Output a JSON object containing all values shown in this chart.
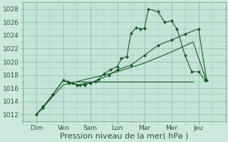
{
  "xlabel": "Pression niveau de la mer( hPa )",
  "background_color": "#cce8dc",
  "plot_bg_color": "#c4e4d8",
  "grid_color": "#9abfad",
  "line_color": "#1a5c28",
  "ylim": [
    1011.5,
    1029
  ],
  "xlim": [
    -0.5,
    7.0
  ],
  "yticks": [
    1012,
    1014,
    1016,
    1018,
    1020,
    1022,
    1024,
    1026,
    1028
  ],
  "days": [
    "Dim",
    "Ven",
    "Sam",
    "Lun",
    "Mar",
    "Mer",
    "Jeu"
  ],
  "day_x": [
    0.0,
    1.0,
    2.0,
    3.0,
    4.0,
    5.0,
    6.0
  ],
  "line1_x": [
    0.0,
    0.25,
    0.6,
    1.0,
    1.15,
    1.35,
    1.6,
    1.8,
    2.0,
    2.2,
    2.5,
    2.75,
    3.0,
    3.15,
    3.35,
    3.5,
    3.7,
    3.85,
    4.0,
    4.15,
    4.5,
    4.75,
    5.0,
    5.2,
    5.5,
    5.75,
    6.0,
    6.25
  ],
  "line1_y": [
    1012.0,
    1013.2,
    1015.0,
    1017.2,
    1017.0,
    1016.8,
    1016.5,
    1016.7,
    1016.8,
    1017.0,
    1018.2,
    1018.8,
    1019.3,
    1020.5,
    1020.8,
    1024.3,
    1025.2,
    1025.0,
    1025.1,
    1028.0,
    1027.6,
    1026.0,
    1026.2,
    1025.0,
    1021.0,
    1018.5,
    1018.5,
    1017.2
  ],
  "line2_x": [
    0.0,
    0.25,
    0.6,
    1.0,
    1.2,
    1.5,
    1.8,
    2.0,
    2.3,
    2.7,
    3.0,
    3.5,
    4.0,
    4.5,
    5.0,
    5.5,
    6.0,
    6.3
  ],
  "line2_y": [
    1012.0,
    1013.0,
    1015.0,
    1017.2,
    1016.8,
    1016.5,
    1016.5,
    1016.8,
    1017.3,
    1018.0,
    1018.8,
    1019.5,
    1021.0,
    1022.5,
    1023.3,
    1024.2,
    1025.0,
    1017.2
  ],
  "line3_x": [
    0.0,
    1.0,
    2.0,
    3.0,
    4.0,
    5.0,
    5.8,
    6.3
  ],
  "line3_y": [
    1012.0,
    1016.5,
    1017.5,
    1018.5,
    1019.8,
    1021.5,
    1023.0,
    1017.0
  ],
  "flatline_x": [
    1.5,
    5.8
  ],
  "flatline_y": [
    1017.0,
    1017.0
  ],
  "xlabel_fontsize": 8,
  "tick_fontsize": 6.5
}
